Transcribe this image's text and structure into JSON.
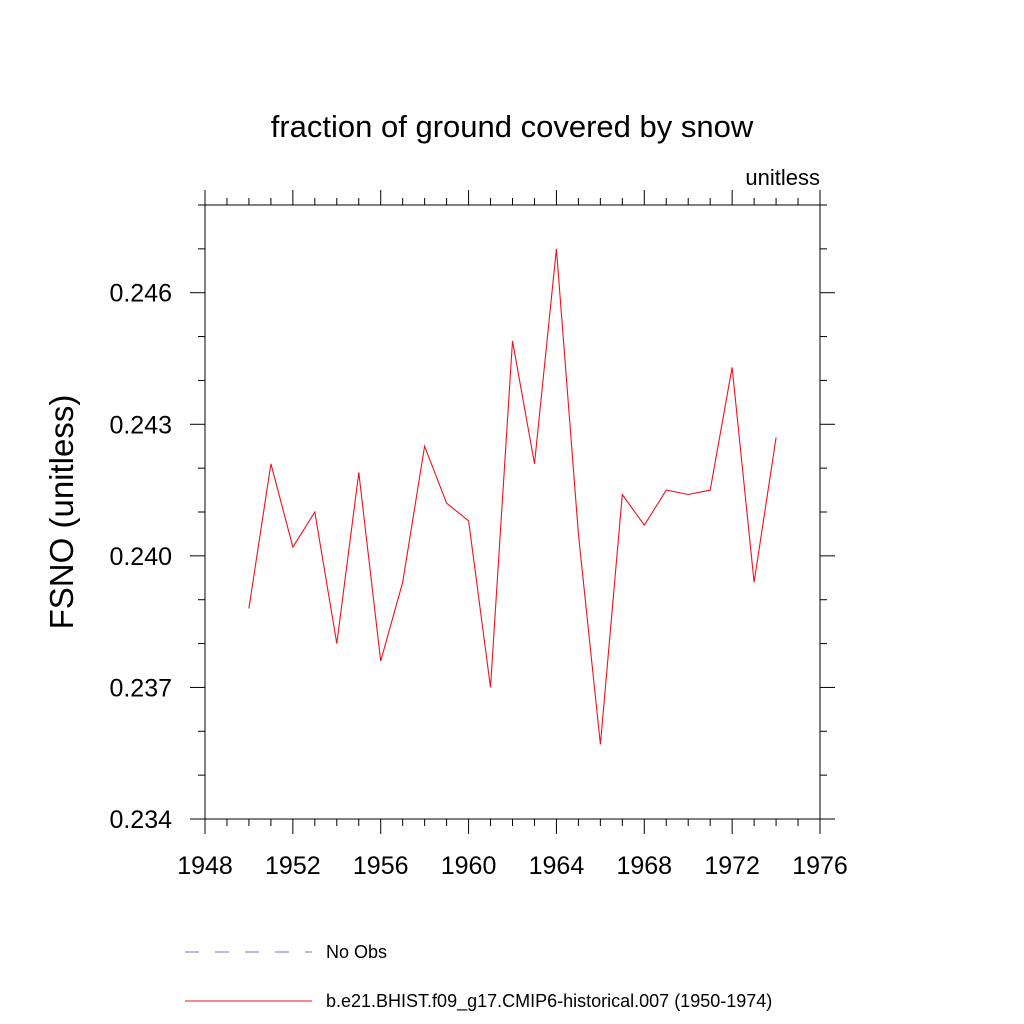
{
  "chart_data": {
    "type": "line",
    "title": "fraction of ground covered by snow",
    "units_label": "unitless",
    "ylabel": "FSNO  (unitless)",
    "xlabel": "",
    "xlim": [
      1948,
      1976
    ],
    "ylim": [
      0.234,
      0.248
    ],
    "x_ticks": [
      "1948",
      "1952",
      "1956",
      "1960",
      "1964",
      "1968",
      "1972",
      "1976"
    ],
    "y_ticks": [
      "0.234",
      "0.237",
      "0.240",
      "0.243",
      "0.246"
    ],
    "series": [
      {
        "name": "b.e21.BHIST.f09_g17.CMIP6-historical.007 (1950-1974)",
        "color": "#e8141e",
        "style": "solid",
        "x": [
          1950,
          1951,
          1952,
          1953,
          1954,
          1955,
          1956,
          1957,
          1958,
          1959,
          1960,
          1961,
          1962,
          1963,
          1964,
          1965,
          1966,
          1967,
          1968,
          1969,
          1970,
          1971,
          1972,
          1973,
          1974
        ],
        "y": [
          0.2388,
          0.2421,
          0.2402,
          0.241,
          0.238,
          0.2419,
          0.2376,
          0.2394,
          0.2425,
          0.2412,
          0.2408,
          0.237,
          0.2449,
          0.2421,
          0.247,
          0.2405,
          0.2357,
          0.2414,
          0.2407,
          0.2415,
          0.2414,
          0.2415,
          0.2443,
          0.2394,
          0.2427
        ]
      }
    ],
    "legend": [
      {
        "label": "No Obs",
        "color": "#7070c0",
        "style": "dashed"
      },
      {
        "label": "b.e21.BHIST.f09_g17.CMIP6-historical.007 (1950-1974)",
        "color": "#e8141e",
        "style": "solid"
      }
    ],
    "legend_position": "bottom",
    "grid": false
  }
}
